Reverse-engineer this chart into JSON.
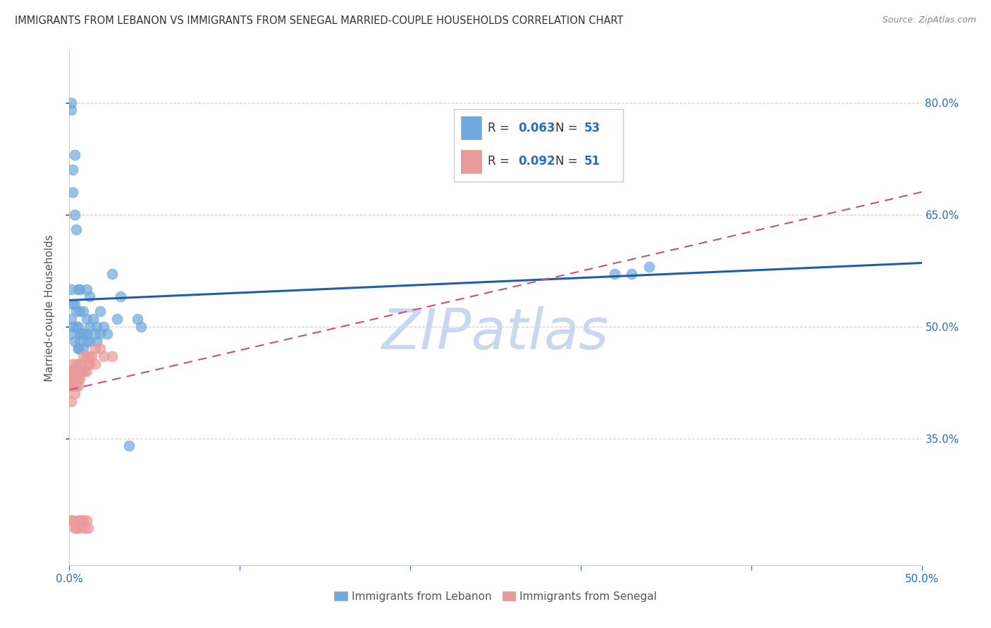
{
  "title": "IMMIGRANTS FROM LEBANON VS IMMIGRANTS FROM SENEGAL MARRIED-COUPLE HOUSEHOLDS CORRELATION CHART",
  "source": "Source: ZipAtlas.com",
  "ylabel": "Married-couple Households",
  "xlim": [
    0.0,
    0.5
  ],
  "ylim": [
    0.18,
    0.87
  ],
  "yticks": [
    0.35,
    0.5,
    0.65,
    0.8
  ],
  "ytick_labels": [
    "35.0%",
    "50.0%",
    "65.0%",
    "80.0%"
  ],
  "xticks": [
    0.0,
    0.1,
    0.2,
    0.3,
    0.4,
    0.5
  ],
  "xtick_labels_shown": [
    "0.0%",
    "",
    "",
    "",
    "",
    "50.0%"
  ],
  "lebanon_color": "#6fa8dc",
  "senegal_color": "#ea9999",
  "lebanon_R": 0.063,
  "lebanon_N": 53,
  "senegal_R": 0.092,
  "senegal_N": 51,
  "lebanon_scatter_x": [
    0.001,
    0.001,
    0.001,
    0.001,
    0.001,
    0.002,
    0.002,
    0.002,
    0.002,
    0.003,
    0.003,
    0.003,
    0.003,
    0.004,
    0.004,
    0.004,
    0.005,
    0.005,
    0.005,
    0.006,
    0.006,
    0.006,
    0.008,
    0.008,
    0.01,
    0.01,
    0.01,
    0.012,
    0.012,
    0.014,
    0.016,
    0.016,
    0.018,
    0.018,
    0.02,
    0.022,
    0.025,
    0.028,
    0.03,
    0.035,
    0.04,
    0.042,
    0.32,
    0.33,
    0.34,
    0.005,
    0.006,
    0.007,
    0.008,
    0.009,
    0.01,
    0.012,
    0.015
  ],
  "lebanon_scatter_y": [
    0.8,
    0.79,
    0.55,
    0.51,
    0.49,
    0.71,
    0.68,
    0.53,
    0.5,
    0.73,
    0.65,
    0.53,
    0.48,
    0.63,
    0.52,
    0.5,
    0.55,
    0.5,
    0.47,
    0.55,
    0.52,
    0.49,
    0.52,
    0.49,
    0.55,
    0.51,
    0.48,
    0.54,
    0.5,
    0.51,
    0.5,
    0.48,
    0.52,
    0.49,
    0.5,
    0.49,
    0.57,
    0.51,
    0.54,
    0.34,
    0.51,
    0.5,
    0.57,
    0.57,
    0.58,
    0.47,
    0.48,
    0.49,
    0.47,
    0.49,
    0.49,
    0.48,
    0.49
  ],
  "senegal_scatter_x": [
    0.001,
    0.001,
    0.001,
    0.001,
    0.002,
    0.002,
    0.002,
    0.002,
    0.002,
    0.003,
    0.003,
    0.003,
    0.003,
    0.003,
    0.004,
    0.004,
    0.004,
    0.004,
    0.005,
    0.005,
    0.005,
    0.006,
    0.006,
    0.006,
    0.007,
    0.007,
    0.008,
    0.008,
    0.009,
    0.01,
    0.01,
    0.011,
    0.012,
    0.012,
    0.013,
    0.015,
    0.015,
    0.018,
    0.02,
    0.025,
    0.001,
    0.002,
    0.003,
    0.004,
    0.005,
    0.006,
    0.007,
    0.008,
    0.009,
    0.01,
    0.011
  ],
  "senegal_scatter_y": [
    0.44,
    0.43,
    0.42,
    0.4,
    0.45,
    0.44,
    0.44,
    0.43,
    0.42,
    0.44,
    0.44,
    0.43,
    0.42,
    0.41,
    0.45,
    0.44,
    0.43,
    0.42,
    0.44,
    0.43,
    0.42,
    0.45,
    0.44,
    0.43,
    0.45,
    0.44,
    0.46,
    0.44,
    0.44,
    0.46,
    0.44,
    0.45,
    0.46,
    0.45,
    0.46,
    0.47,
    0.45,
    0.47,
    0.46,
    0.46,
    0.24,
    0.24,
    0.23,
    0.23,
    0.24,
    0.23,
    0.24,
    0.24,
    0.23,
    0.24,
    0.23
  ],
  "lb_trend_x0": 0.0,
  "lb_trend_y0": 0.535,
  "lb_trend_x1": 0.5,
  "lb_trend_y1": 0.585,
  "sn_trend_x0": 0.0,
  "sn_trend_y0": 0.415,
  "sn_trend_x1": 0.5,
  "sn_trend_y1": 0.68,
  "trend_line_color_lebanon": "#1f5fa6",
  "trend_line_color_senegal": "#c94f7c",
  "watermark": "ZIPatlas",
  "watermark_color": "#c8d8f0",
  "grid_color": "#cccccc",
  "title_color": "#333333",
  "tick_label_color": "#2a6ebb",
  "legend_R_color": "#2a6ebb",
  "legend_N_color": "#2a6ebb",
  "legend_text_color": "#333333"
}
